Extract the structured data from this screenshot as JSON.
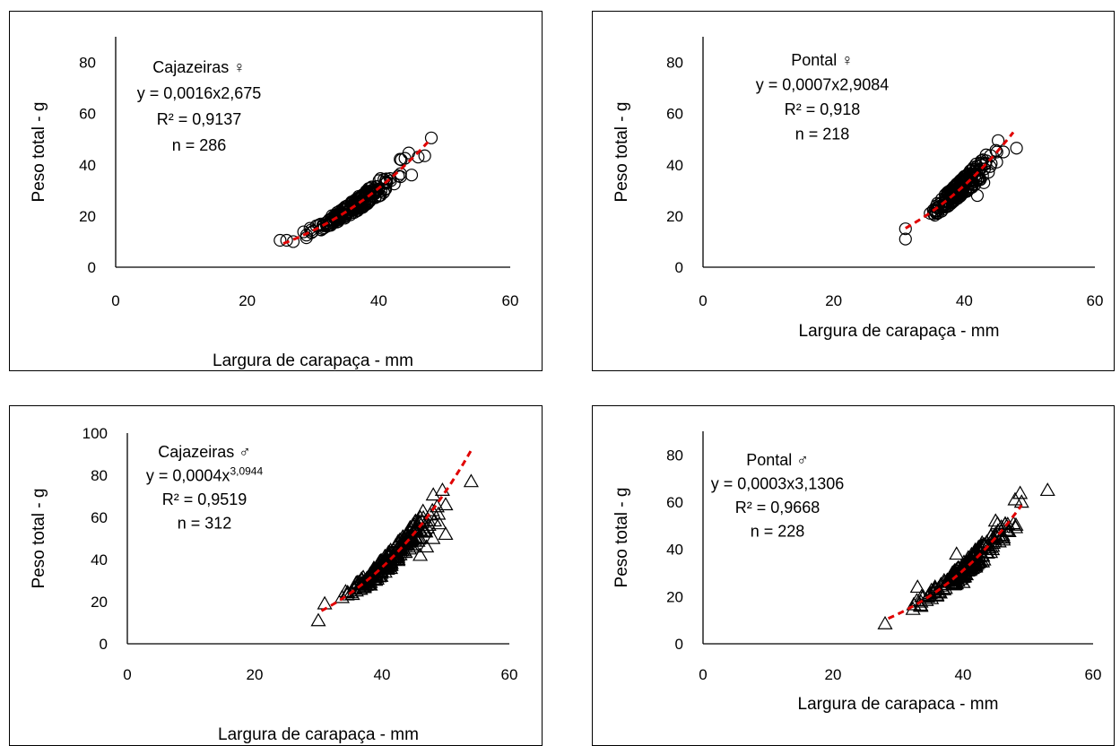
{
  "chart_data": [
    {
      "type": "scatter",
      "marker": "circle",
      "xlabel": "Largura de carapaça - mm",
      "ylabel": "Peso total - g",
      "xlim": [
        0,
        60
      ],
      "ylim": [
        0,
        90
      ],
      "xticks": [
        0,
        20,
        40,
        60
      ],
      "yticks": [
        0,
        20,
        40,
        60,
        80
      ],
      "annotation": {
        "line1": "Cajazeiras ♀",
        "eq_prefix": "y = 0,0016x2,675",
        "eq_sup": "",
        "r2": "R² = 0,9137",
        "n": "286"
      },
      "fit": {
        "a": 0.0016,
        "b": 2.675,
        "x_range": [
          25.5,
          47.5
        ],
        "color": "#e00000"
      },
      "points_summary": {
        "x_range": [
          25,
          48
        ],
        "count": 286
      },
      "outliers": [
        [
          25,
          10.5
        ],
        [
          26,
          10.5
        ],
        [
          27,
          10
        ],
        [
          29,
          11.5
        ],
        [
          30,
          14
        ],
        [
          46,
          43
        ],
        [
          47,
          43.5
        ],
        [
          48,
          50.5
        ],
        [
          44,
          42.5
        ],
        [
          45,
          36
        ]
      ]
    },
    {
      "type": "scatter",
      "marker": "circle",
      "xlabel": "Largura de carapaça - mm",
      "ylabel": "Peso total - g",
      "xlim": [
        0,
        60
      ],
      "ylim": [
        0,
        90
      ],
      "xticks": [
        0,
        20,
        40,
        60
      ],
      "yticks": [
        0,
        20,
        40,
        60,
        80
      ],
      "annotation": {
        "line1": "Pontal ♀",
        "eq_prefix": "y = 0,0007x2,9084",
        "eq_sup": "",
        "r2": "R² = 0,918",
        "n": "218"
      },
      "fit": {
        "a": 0.0007,
        "b": 2.9084,
        "x_range": [
          31,
          47.5
        ],
        "color": "#e00000"
      },
      "points_summary": {
        "x_range": [
          31,
          48
        ],
        "count": 218
      },
      "outliers": [
        [
          31,
          11
        ],
        [
          31,
          15
        ],
        [
          45,
          45
        ],
        [
          46,
          45
        ],
        [
          48,
          46.5
        ],
        [
          42,
          28
        ],
        [
          43,
          33
        ]
      ]
    },
    {
      "type": "scatter",
      "marker": "triangle",
      "xlabel": "Largura de carapaça - mm",
      "ylabel": "Peso total - g",
      "xlim": [
        0,
        60
      ],
      "ylim": [
        0,
        100
      ],
      "xticks": [
        0,
        20,
        40,
        60
      ],
      "yticks": [
        0,
        20,
        40,
        60,
        80,
        100
      ],
      "annotation": {
        "line1": "Cajazeiras ♂",
        "eq_prefix": "y = 0,0004x",
        "eq_sup": "3,0944",
        "r2": "R² = 0,9519",
        "n": "312"
      },
      "fit": {
        "a": 0.0004,
        "b": 3.0944,
        "x_range": [
          30.5,
          54
        ],
        "color": "#e00000"
      },
      "points_summary": {
        "x_range": [
          30,
          54
        ],
        "count": 312
      },
      "outliers": [
        [
          30,
          11
        ],
        [
          31,
          19
        ],
        [
          54,
          77
        ],
        [
          50,
          66
        ],
        [
          50,
          52
        ],
        [
          49,
          57
        ],
        [
          47,
          46
        ],
        [
          46,
          42
        ],
        [
          48,
          50
        ]
      ]
    },
    {
      "type": "scatter",
      "marker": "triangle",
      "xlabel": "Largura de carapaca - mm",
      "ylabel": "Peso total - g",
      "xlim": [
        0,
        60
      ],
      "ylim": [
        0,
        90
      ],
      "xticks": [
        0,
        20,
        40,
        60
      ],
      "yticks": [
        0,
        20,
        40,
        60,
        80
      ],
      "annotation": {
        "line1": "Pontal ♂",
        "eq_prefix": "y = 0,0003x3,1306",
        "eq_sup": "",
        "r2": "R² = 0,9668",
        "n": "228"
      },
      "fit": {
        "a": 0.0003,
        "b": 3.1306,
        "x_range": [
          28.5,
          49
        ],
        "color": "#e00000"
      },
      "points_summary": {
        "x_range": [
          28,
          53
        ],
        "count": 228
      },
      "outliers": [
        [
          28,
          8.5
        ],
        [
          33,
          24
        ],
        [
          39,
          38
        ],
        [
          40,
          26
        ],
        [
          48,
          61
        ],
        [
          49,
          60
        ],
        [
          53,
          65
        ],
        [
          44,
          40
        ],
        [
          45,
          52
        ]
      ]
    }
  ]
}
